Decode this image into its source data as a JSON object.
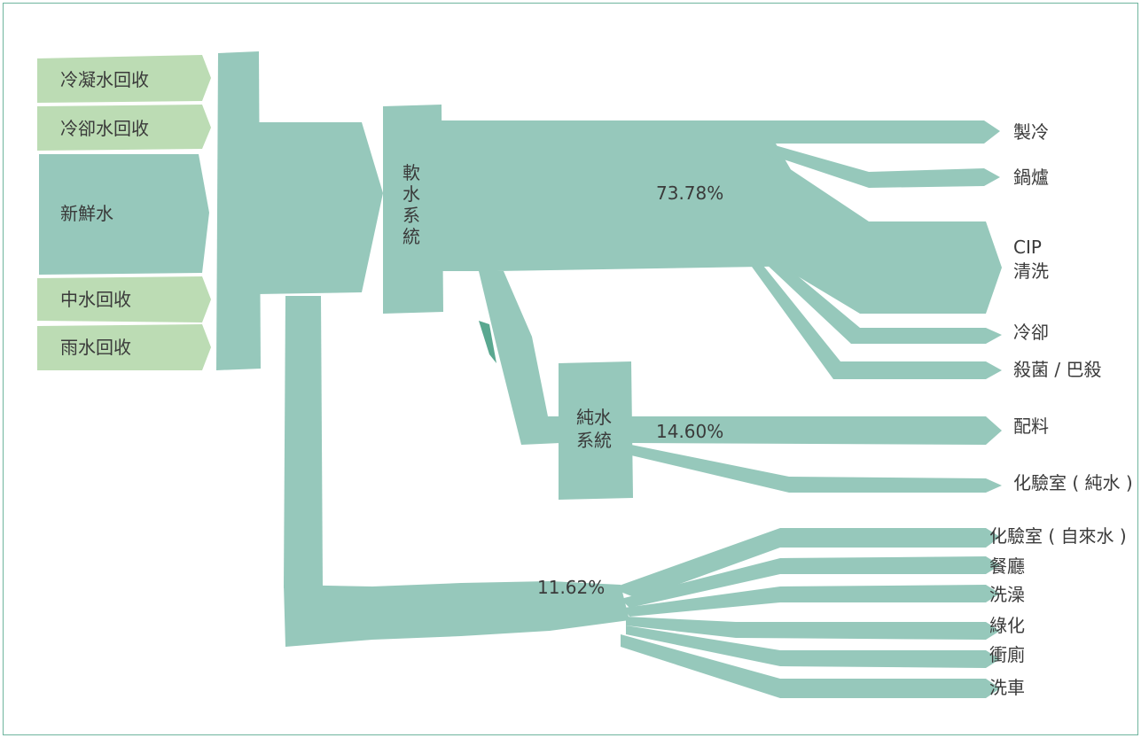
{
  "colors": {
    "flow": "#96c8bb",
    "source_light": "#bcdcb4",
    "source_main": "#96c8bb",
    "text": "#3a3a3a",
    "border": "#6fb59e"
  },
  "sources": {
    "condensate": "冷凝水回收",
    "cooling": "冷卻水回收",
    "fresh": "新鮮水",
    "grey": "中水回收",
    "rain": "雨水回收"
  },
  "nodes": {
    "soft_line1": "軟",
    "soft_line2": "水",
    "soft_line3": "系",
    "soft_line4": "統",
    "pure_line1": "純水",
    "pure_line2": "系統"
  },
  "percentages": {
    "soft": "73.78%",
    "pure": "14.60%",
    "tap": "11.62%"
  },
  "outputs": {
    "refrigeration": "製冷",
    "boiler": "鍋爐",
    "cip_line1": "CIP",
    "cip_line2": "清洗",
    "cooling": "冷卻",
    "sterilize": "殺菌 / 巴殺",
    "batching": "配料",
    "lab_pure": "化驗室 ( 純水 )",
    "lab_tap": "化驗室 ( 自來水 )",
    "canteen": "餐廳",
    "shower": "洗澡",
    "greening": "綠化",
    "toilet": "衝廁",
    "carwash": "洗車"
  }
}
